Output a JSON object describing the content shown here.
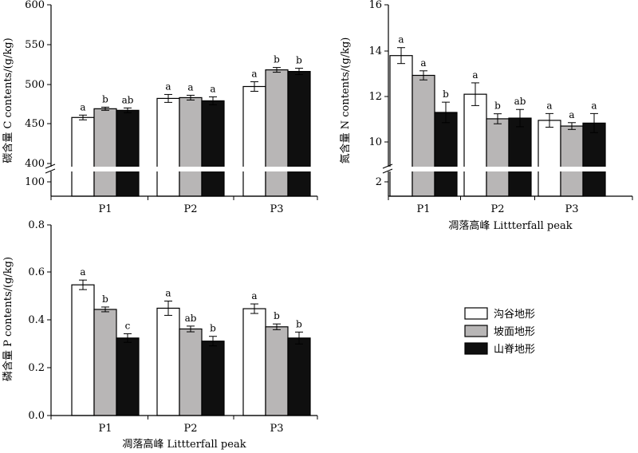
{
  "chart_data": [
    {
      "type": "bar",
      "categories": [
        "P1",
        "P2",
        "P3"
      ],
      "series": [
        {
          "name": "沟谷地形",
          "values": [
            458,
            482,
            497
          ],
          "errors": [
            3,
            5,
            6
          ],
          "sig": [
            "a",
            "a",
            "a"
          ]
        },
        {
          "name": "坡面地形",
          "values": [
            469,
            483,
            518
          ],
          "errors": [
            2,
            3,
            3
          ],
          "sig": [
            "b",
            "a",
            "b"
          ]
        },
        {
          "name": "山脊地形",
          "values": [
            467,
            479,
            516
          ],
          "errors": [
            3,
            5,
            4
          ],
          "sig": [
            "ab",
            "a",
            "b"
          ]
        }
      ],
      "xlabel": "",
      "ylabel": "碳含量 C contents/(g/kg)",
      "ylim": [
        400,
        600
      ],
      "axis_break": {
        "lower_ticks": [
          "100",
          "400"
        ],
        "upper_ticks": [
          "450",
          "500",
          "550",
          "600"
        ]
      },
      "yticks": [
        "400",
        "450",
        "500",
        "550",
        "600"
      ]
    },
    {
      "type": "bar",
      "categories": [
        "P1",
        "P2",
        "P3"
      ],
      "series": [
        {
          "name": "沟谷地形",
          "values": [
            13.8,
            12.1,
            10.95
          ],
          "errors": [
            0.35,
            0.5,
            0.3
          ],
          "sig": [
            "a",
            "a",
            "a"
          ]
        },
        {
          "name": "坡面地形",
          "values": [
            12.93,
            11.02,
            10.7
          ],
          "errors": [
            0.2,
            0.22,
            0.15
          ],
          "sig": [
            "a",
            "b",
            "a"
          ]
        },
        {
          "name": "山脊地形",
          "values": [
            11.3,
            11.05,
            10.83
          ],
          "errors": [
            0.45,
            0.38,
            0.42
          ],
          "sig": [
            "b",
            "ab",
            "a"
          ]
        }
      ],
      "xlabel": "凋落高峰 Littterfall peak",
      "ylabel": "氮含量 N contents/(g/kg)",
      "ylim": [
        9,
        16
      ],
      "axis_break": {
        "lower_ticks": [
          "2"
        ],
        "upper_ticks": [
          "10",
          "12",
          "14",
          "16"
        ]
      },
      "yticks": [
        "10",
        "12",
        "14",
        "16"
      ]
    },
    {
      "type": "bar",
      "categories": [
        "P1",
        "P2",
        "P3"
      ],
      "series": [
        {
          "name": "沟谷地形",
          "values": [
            0.548,
            0.45,
            0.448
          ],
          "errors": [
            0.02,
            0.03,
            0.02
          ],
          "sig": [
            "a",
            "a",
            "a"
          ]
        },
        {
          "name": "坡面地形",
          "values": [
            0.445,
            0.363,
            0.372
          ],
          "errors": [
            0.01,
            0.012,
            0.012
          ],
          "sig": [
            "b",
            "ab",
            "b"
          ]
        },
        {
          "name": "山脊地形",
          "values": [
            0.325,
            0.312,
            0.325
          ],
          "errors": [
            0.018,
            0.02,
            0.025
          ],
          "sig": [
            "c",
            "b",
            "b"
          ]
        }
      ],
      "xlabel": "凋落高峰 Littterfall peak",
      "ylabel": "磷含量 P contents/(g/kg)",
      "ylim": [
        0,
        0.8
      ],
      "yticks": [
        "0.0",
        "0.2",
        "0.4",
        "0.6",
        "0.8"
      ]
    }
  ],
  "legend": {
    "items": [
      {
        "label": "沟谷地形",
        "color": "#ffffff"
      },
      {
        "label": "坡面地形",
        "color": "#b8b6b6"
      },
      {
        "label": "山脊地形",
        "color": "#0f0f0f"
      }
    ]
  },
  "colors": {
    "valley": "#ffffff",
    "slope": "#b8b6b6",
    "ridge": "#0f0f0f",
    "stroke": "#000000"
  }
}
